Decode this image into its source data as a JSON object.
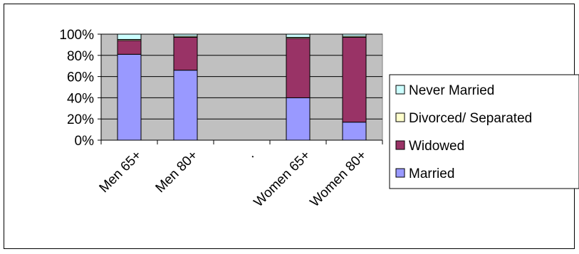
{
  "chart_data": {
    "type": "bar",
    "stacked": true,
    "percent": true,
    "categories": [
      "Men 65+",
      "Men 80+",
      ".",
      "Women 65+",
      "Women 80+"
    ],
    "series": [
      {
        "name": "Married",
        "values": [
          81,
          66,
          0,
          40,
          17
        ],
        "color": "#9999ff"
      },
      {
        "name": "Widowed",
        "values": [
          13,
          31,
          0,
          56,
          80
        ],
        "color": "#993366"
      },
      {
        "name": "Divorced/ Separated",
        "values": [
          1,
          1,
          0,
          1,
          1
        ],
        "color": "#ffffcc"
      },
      {
        "name": "Never Married",
        "values": [
          5,
          2,
          0,
          3,
          2
        ],
        "color": "#ccffff"
      }
    ],
    "y_ticks": [
      "0%",
      "20%",
      "40%",
      "60%",
      "80%",
      "100%"
    ],
    "ylim": [
      0,
      100
    ],
    "grid": true,
    "legend_position": "right",
    "plot_background": "#c0c0c0"
  }
}
